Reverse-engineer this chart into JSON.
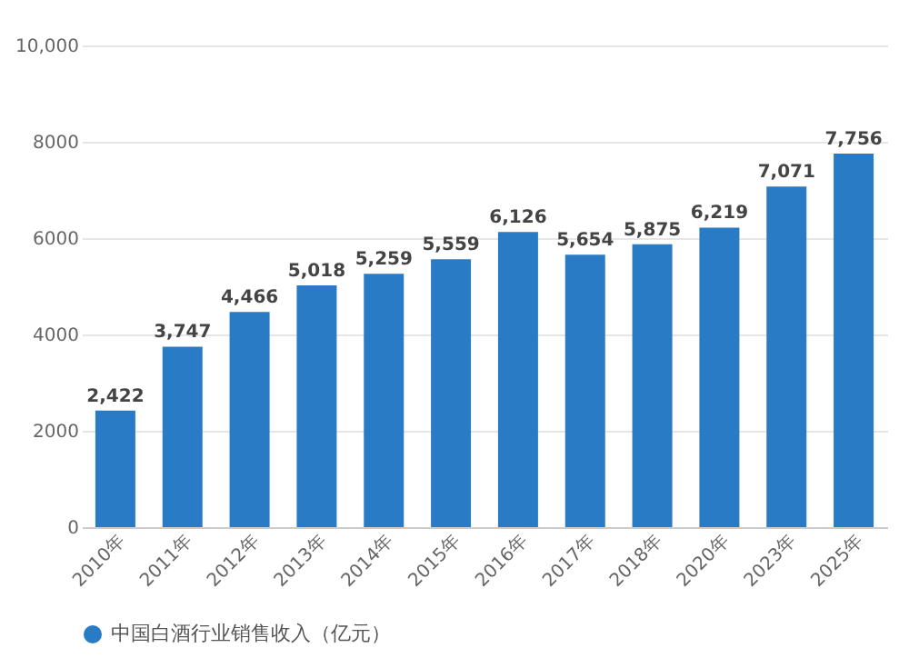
{
  "chart_data": {
    "type": "bar",
    "categories": [
      "2010年",
      "2011年",
      "2012年",
      "2013年",
      "2014年",
      "2015年",
      "2016年",
      "2017年",
      "2018年",
      "2020年",
      "2023年",
      "2025年"
    ],
    "series": [
      {
        "name": "中国白酒行业销售收入（亿元）",
        "color": "#2a7bc6",
        "values": [
          2422,
          3747,
          4466,
          5018,
          5259,
          5559,
          6126,
          5654,
          5875,
          6219,
          7071,
          7756
        ]
      }
    ],
    "value_labels": [
      "2,422",
      "3,747",
      "4,466",
      "5,018",
      "5,259",
      "5,559",
      "6,126",
      "5,654",
      "5,875",
      "6,219",
      "7,071",
      "7,756"
    ],
    "ylim": [
      0,
      10000
    ],
    "yticks": [
      0,
      2000,
      4000,
      6000,
      {
        "value": 8000,
        "label": "8000"
      },
      {
        "value": 10000,
        "label": "10,000"
      }
    ],
    "grid": "y",
    "legend": "bottom"
  }
}
